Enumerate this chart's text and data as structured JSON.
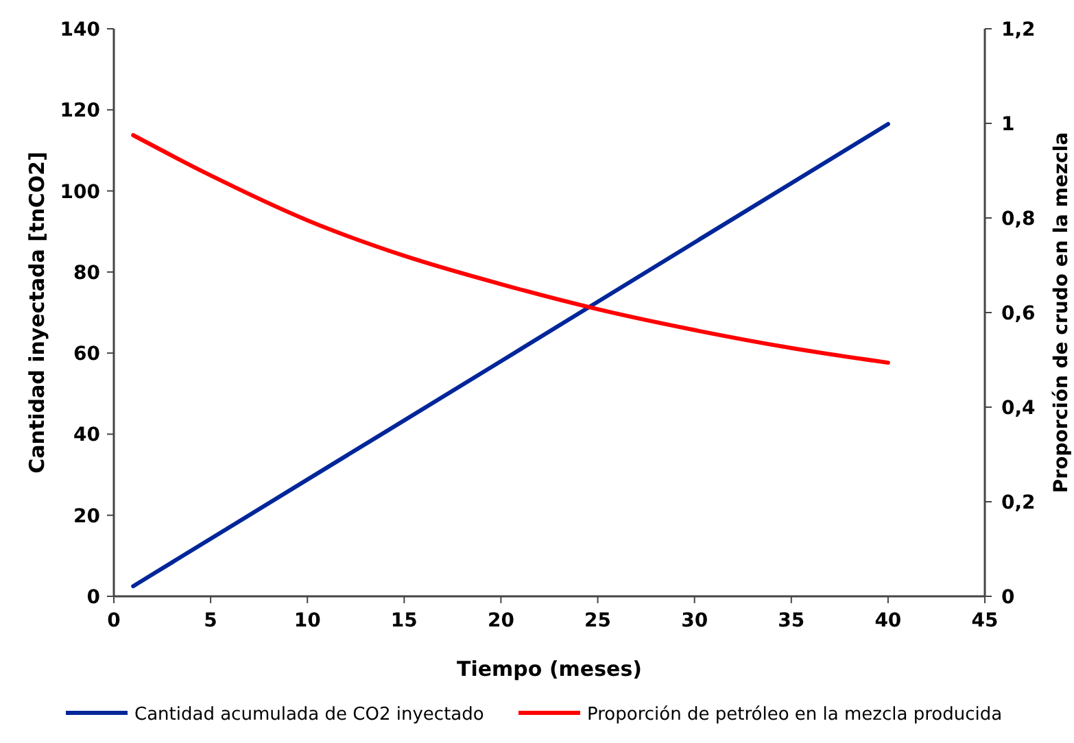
{
  "chart_data": {
    "type": "line",
    "xlabel": "Tiempo (meses)",
    "ylabel": "Cantidad inyectada [tnCO2]",
    "y2label": "Proporción de crudo en la mezcla",
    "xlim": [
      0,
      45
    ],
    "xticks": [
      0,
      5,
      10,
      15,
      20,
      25,
      30,
      35,
      40,
      45
    ],
    "ylim": [
      0,
      140
    ],
    "yticks": [
      0,
      20,
      40,
      60,
      80,
      100,
      120,
      140
    ],
    "y2lim": [
      0,
      1.2
    ],
    "y2ticks": [
      0,
      {
        "value": 0.2,
        "label": "0,2"
      },
      {
        "value": 0.4,
        "label": "0,4"
      },
      {
        "value": 0.6,
        "label": "0,6"
      },
      {
        "value": 0.8,
        "label": "0,8"
      },
      1,
      {
        "value": 1.2,
        "label": "1,2"
      }
    ],
    "series": [
      {
        "name": "Cantidad acumulada de CO2 inyectado",
        "color": "#002699",
        "x": [
          1,
          10,
          20,
          30,
          40
        ],
        "values": [
          2.5,
          28.8,
          58,
          87.3,
          116.5
        ]
      },
      {
        "name": "Proporción de petróleo en la mezcla producida",
        "color": "#ff0000",
        "axis": "y2",
        "x": [
          1,
          5,
          10,
          15,
          20,
          25,
          30,
          35,
          40
        ],
        "values": [
          0.975,
          0.89,
          0.795,
          0.72,
          0.66,
          0.607,
          0.563,
          0.525,
          0.494
        ]
      }
    ],
    "grid": false,
    "legend": "bottom",
    "marker": "none",
    "line_style": "solid"
  }
}
